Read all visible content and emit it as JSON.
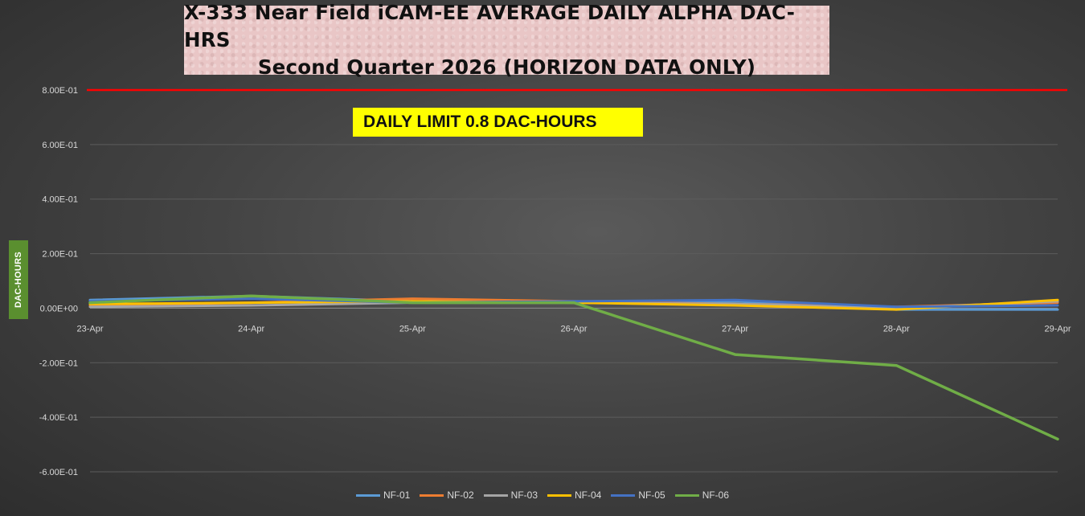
{
  "chart_data": {
    "type": "line",
    "title": "X-333 Near Field iCAM-EE AVERAGE DAILY ALPHA DAC-HRS",
    "subtitle": "Second Quarter 2026 (HORIZON DATA ONLY)",
    "ylabel": "DAC-HOURS",
    "xlabel": "",
    "categories": [
      "23-Apr",
      "24-Apr",
      "25-Apr",
      "26-Apr",
      "27-Apr",
      "28-Apr",
      "29-Apr"
    ],
    "ylim": [
      -0.6,
      0.8
    ],
    "yticks": [
      0.8,
      0.6,
      0.4,
      0.2,
      0.0,
      -0.2,
      -0.4,
      -0.6
    ],
    "ytick_labels": [
      "8.00E-01",
      "6.00E-01",
      "4.00E-01",
      "2.00E-01",
      "0.00E+00",
      "-2.00E-01",
      "-4.00E-01",
      "-6.00E-01"
    ],
    "gridlines": true,
    "legend_position": "bottom",
    "limit": {
      "value": 0.8,
      "color": "#ff0000",
      "label": "DAILY LIMIT 0.8 DAC-HOURS"
    },
    "series": [
      {
        "name": "NF-01",
        "color": "#5b9bd5",
        "values": [
          0.03,
          0.045,
          0.025,
          0.02,
          0.025,
          -0.005,
          -0.005
        ]
      },
      {
        "name": "NF-02",
        "color": "#ed7d31",
        "values": [
          0.01,
          0.02,
          0.035,
          0.025,
          0.015,
          0.005,
          0.02
        ]
      },
      {
        "name": "NF-03",
        "color": "#a5a5a5",
        "values": [
          0.005,
          0.01,
          0.02,
          0.02,
          0.015,
          0.0,
          0.025
        ]
      },
      {
        "name": "NF-04",
        "color": "#ffc000",
        "values": [
          0.015,
          0.02,
          0.025,
          0.02,
          0.01,
          -0.005,
          0.03
        ]
      },
      {
        "name": "NF-05",
        "color": "#4472c4",
        "values": [
          0.025,
          0.035,
          0.02,
          0.025,
          0.03,
          0.005,
          0.01
        ]
      },
      {
        "name": "NF-06",
        "color": "#70ad47",
        "values": [
          0.02,
          0.045,
          0.02,
          0.02,
          -0.17,
          -0.21,
          -0.48
        ]
      }
    ]
  }
}
